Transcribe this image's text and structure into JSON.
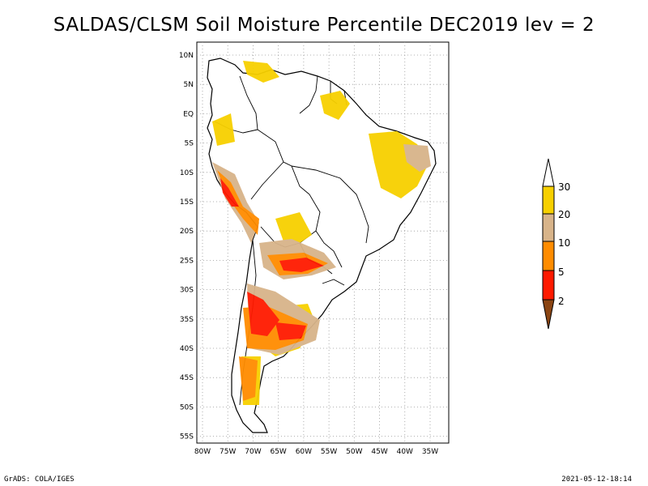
{
  "title": "SALDAS/CLSM Soil Moisture Percentile DEC2019 lev = 2",
  "footer_left": "GrADS: COLA/IGES",
  "footer_right": "2021-05-12-18:14",
  "map": {
    "lat_labels": [
      "10N",
      "5N",
      "EQ",
      "5S",
      "10S",
      "15S",
      "20S",
      "25S",
      "30S",
      "35S",
      "40S",
      "45S",
      "50S",
      "55S"
    ],
    "lon_labels": [
      "80W",
      "75W",
      "70W",
      "65W",
      "60W",
      "55W",
      "50W",
      "45W",
      "40W",
      "35W"
    ],
    "grid": true
  },
  "legend": {
    "labels": [
      "30",
      "20",
      "10",
      "5",
      "2"
    ],
    "colors": {
      "above_30": "#ffffff",
      "20_30": "#f7d000",
      "10_20": "#d8b48a",
      "5_10": "#ff8c00",
      "2_5": "#ff1a00",
      "below_2": "#8b4513"
    }
  }
}
